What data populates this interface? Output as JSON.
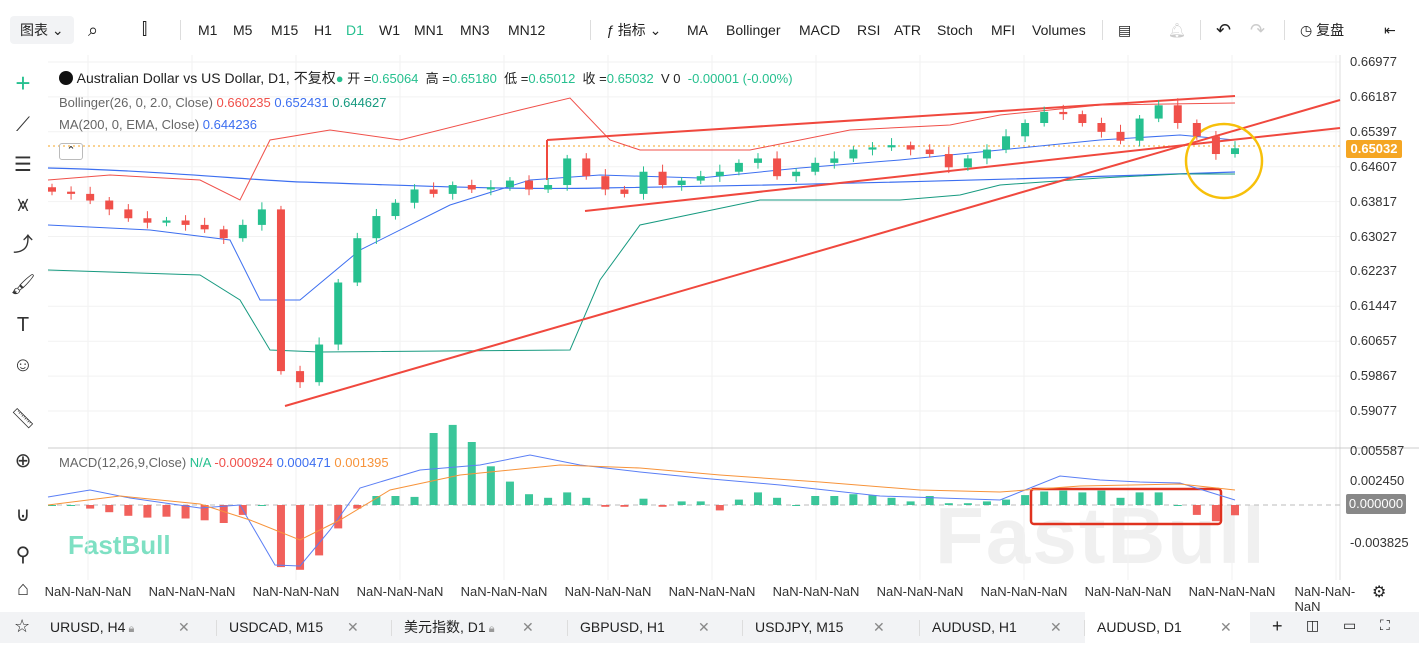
{
  "toolbar": {
    "chart_type": "图表",
    "timeframes": [
      "M1",
      "M5",
      "M15",
      "H1",
      "D1",
      "W1",
      "MN1",
      "MN3",
      "MN12"
    ],
    "active_timeframe": "D1",
    "indicators_label": "指标",
    "indicators": [
      "MA",
      "Bollinger",
      "MACD",
      "RSI",
      "ATR",
      "Stoch",
      "MFI",
      "Volumes"
    ],
    "replay_label": "复盘"
  },
  "legend": {
    "title": "Australian Dollar vs US Dollar, D1, 不复权",
    "open_label": "开 =",
    "open": "0.65064",
    "high_label": "高 =",
    "high": "0.65180",
    "low_label": "低 =",
    "low": "0.65012",
    "close_label": "收 =",
    "close": "0.65032",
    "volume": "V 0",
    "change": "-0.00001 (-0.00%)",
    "bollinger": {
      "label": "Bollinger(26, 0, 2.0, Close)",
      "upper": "0.660235",
      "middle": "0.652431",
      "lower": "0.644627"
    },
    "ma": {
      "label": "MA(200, 0, EMA, Close)",
      "value": "0.644236"
    },
    "macd": {
      "label": "MACD(12,26,9,Close)",
      "na": "N/A",
      "hist": "-0.000924",
      "macd": "0.000471",
      "signal": "0.001395"
    }
  },
  "price_axis": [
    "0.66977",
    "0.66187",
    "0.65397",
    "0.64607",
    "0.63817",
    "0.63027",
    "0.62237",
    "0.61447",
    "0.60657",
    "0.59867",
    "0.59077"
  ],
  "current_price": "0.65032",
  "macd_axis": [
    "0.005587",
    "0.002450",
    "-0.003825"
  ],
  "macd_zero": "0.000000",
  "time_labels": [
    "NaN-NaN-NaN",
    "NaN-NaN-NaN",
    "NaN-NaN-NaN",
    "NaN-NaN-NaN",
    "NaN-NaN-NaN",
    "NaN-NaN-NaN",
    "NaN-NaN-NaN",
    "NaN-NaN-NaN",
    "NaN-NaN-NaN",
    "NaN-NaN-NaN",
    "NaN-NaN-NaN",
    "NaN-NaN-NaN",
    "NaN-NaN-NaN"
  ],
  "watermark": "FastBull",
  "tabs": [
    {
      "label": "URUSD, H4",
      "locked": true
    },
    {
      "label": "USDCAD, M15"
    },
    {
      "label": "美元指数, D1",
      "locked": true
    },
    {
      "label": "GBPUSD, H1"
    },
    {
      "label": "USDJPY, M15"
    },
    {
      "label": "AUDUSD, H1"
    },
    {
      "label": "AUDUSD, D1",
      "active": true
    }
  ],
  "colors": {
    "up": "#26c08f",
    "down": "#f0504a",
    "accent": "#f5a623",
    "bb_upper": "#f0504a",
    "bb_mid": "#3d6ff0",
    "bb_lower": "#179a80",
    "macd_line": "#5b7ff5",
    "signal_line": "#f7933a"
  },
  "chart_data": {
    "type": "candlestick",
    "closes": [
      0.6405,
      0.64,
      0.6385,
      0.6365,
      0.6345,
      0.6335,
      0.634,
      0.633,
      0.632,
      0.63,
      0.633,
      0.6365,
      0.6,
      0.5975,
      0.606,
      0.62,
      0.63,
      0.635,
      0.638,
      0.641,
      0.64,
      0.642,
      0.641,
      0.6415,
      0.643,
      0.641,
      0.642,
      0.648,
      0.644,
      0.641,
      0.64,
      0.645,
      0.642,
      0.643,
      0.644,
      0.645,
      0.647,
      0.648,
      0.644,
      0.645,
      0.647,
      0.648,
      0.65,
      0.6505,
      0.651,
      0.65,
      0.649,
      0.646,
      0.648,
      0.65,
      0.653,
      0.656,
      0.6585,
      0.658,
      0.656,
      0.654,
      0.652,
      0.657,
      0.66,
      0.656,
      0.653,
      0.649,
      0.6503
    ]
  }
}
